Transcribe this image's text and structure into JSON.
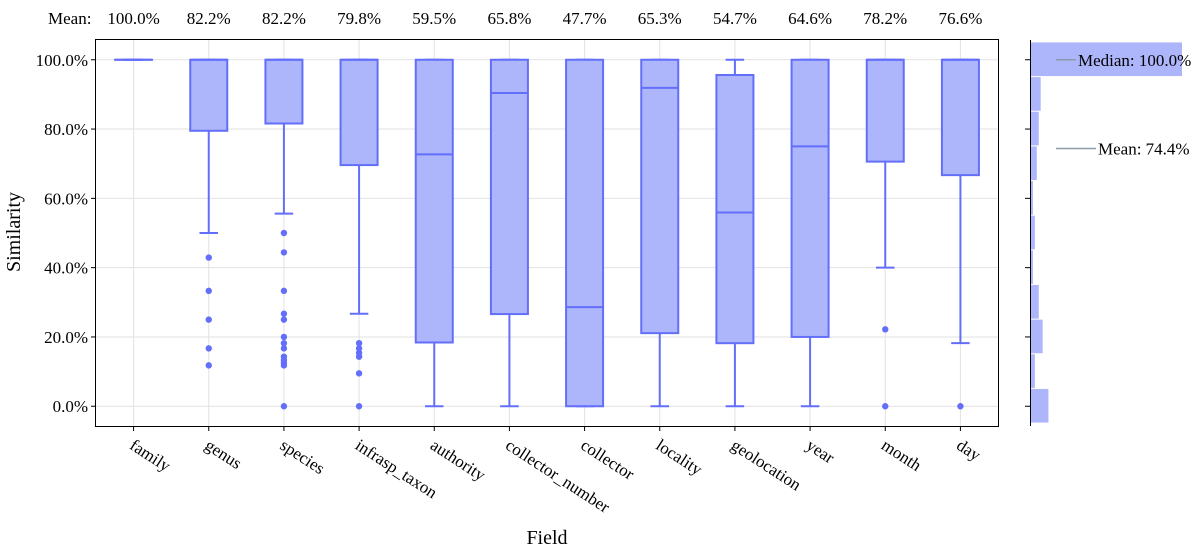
{
  "chart_data": {
    "type": "boxplot",
    "xlabel": "Field",
    "ylabel": "Similarity",
    "ylim": [
      -5.7,
      105.7
    ],
    "y_ticks": [
      0,
      20,
      40,
      60,
      80,
      100
    ],
    "y_tick_labels": [
      "0.0%",
      "20.0%",
      "40.0%",
      "60.0%",
      "80.0%",
      "100.0%"
    ],
    "grid": true,
    "mean_row_label": "Mean:",
    "colors": {
      "box_fill": "#aeb6fb",
      "box_stroke": "#636efa",
      "mean_line": "#8c9ba8",
      "grid": "#e2e2e2"
    },
    "categories": [
      "family",
      "genus",
      "species",
      "infrasp_taxon",
      "authority",
      "collector_number",
      "collector",
      "locality",
      "geolocation",
      "year",
      "month",
      "day"
    ],
    "means": [
      "100.0%",
      "82.2%",
      "82.2%",
      "79.8%",
      "59.5%",
      "65.8%",
      "47.7%",
      "65.3%",
      "54.7%",
      "64.6%",
      "78.2%",
      "76.6%"
    ],
    "boxes": [
      {
        "min": 100,
        "q1": 100,
        "median": 100,
        "q3": 100,
        "max": 100,
        "outliers": []
      },
      {
        "min": 50,
        "q1": 79.5,
        "median": 100,
        "q3": 100,
        "max": 100,
        "outliers": [
          42.9,
          33.3,
          25,
          16.7,
          11.8
        ]
      },
      {
        "min": 55.6,
        "q1": 81.6,
        "median": 100,
        "q3": 100,
        "max": 100,
        "outliers": [
          50,
          44.4,
          33.3,
          26.7,
          25,
          20,
          18.2,
          16.7,
          14.3,
          13.3,
          12.5,
          11.8,
          0
        ]
      },
      {
        "min": 26.7,
        "q1": 69.6,
        "median": 100,
        "q3": 100,
        "max": 100,
        "outliers": [
          18.2,
          16.7,
          15.4,
          14.3,
          9.5,
          0
        ]
      },
      {
        "min": 0,
        "q1": 18.4,
        "median": 72.7,
        "q3": 100,
        "max": 100,
        "outliers": []
      },
      {
        "min": 0,
        "q1": 26.6,
        "median": 90.4,
        "q3": 100,
        "max": 100,
        "outliers": []
      },
      {
        "min": 0,
        "q1": 0,
        "median": 28.6,
        "q3": 100,
        "max": 100,
        "outliers": []
      },
      {
        "min": 0,
        "q1": 21.1,
        "median": 91.9,
        "q3": 100,
        "max": 100,
        "outliers": []
      },
      {
        "min": 0,
        "q1": 18.2,
        "median": 55.9,
        "q3": 95.6,
        "max": 100,
        "outliers": []
      },
      {
        "min": 0,
        "q1": 20,
        "median": 75,
        "q3": 100,
        "max": 100,
        "outliers": []
      },
      {
        "min": 40,
        "q1": 70.6,
        "median": 100,
        "q3": 100,
        "max": 100,
        "outliers": [
          22.2,
          0
        ]
      },
      {
        "min": 18.2,
        "q1": 66.7,
        "median": 100,
        "q3": 100,
        "max": 100,
        "outliers": [
          0
        ]
      }
    ],
    "histogram": {
      "bin_width": 10,
      "bins": [
        {
          "lo": 0,
          "hi": 10,
          "count": 9
        },
        {
          "lo": 10,
          "hi": 20,
          "count": 2
        },
        {
          "lo": 20,
          "hi": 30,
          "count": 6
        },
        {
          "lo": 30,
          "hi": 40,
          "count": 4
        },
        {
          "lo": 40,
          "hi": 50,
          "count": 1
        },
        {
          "lo": 50,
          "hi": 60,
          "count": 2
        },
        {
          "lo": 60,
          "hi": 70,
          "count": 1
        },
        {
          "lo": 70,
          "hi": 80,
          "count": 3
        },
        {
          "lo": 80,
          "hi": 90,
          "count": 4
        },
        {
          "lo": 90,
          "hi": 100,
          "count": 5
        },
        {
          "lo": 100,
          "hi": 110,
          "count": 78
        }
      ],
      "median_value": 100,
      "mean_value": 74.4,
      "median_label": "Median: 100.0%",
      "mean_label": "Mean: 74.4%"
    }
  }
}
